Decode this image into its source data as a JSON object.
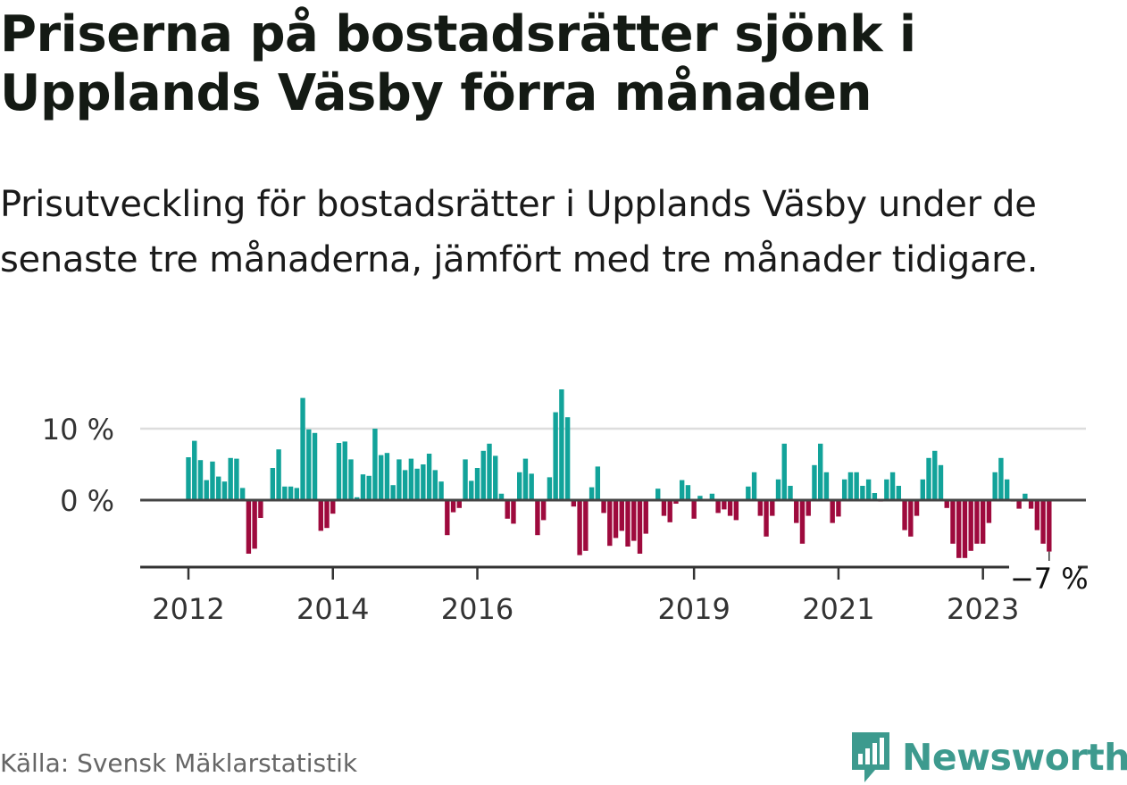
{
  "title": "Priserna på bostadsrätter sjönk i Upplands Väsby förra månaden",
  "subtitle": "Prisutveckling för bostadsrätter i Upplands Väsby under de senaste tre månaderna, jämfört med tre månader tidigare.",
  "source": "Källa: Svensk Mäklarstatistik",
  "brand": {
    "name": "Newsworthy",
    "logo_icon": "bar-chart-logo-icon"
  },
  "colors": {
    "positive": "#12a39a",
    "negative": "#9e0a3d",
    "zero_line": "#444444",
    "grid": "#dddddd",
    "brand": "#3d9a8e"
  },
  "chart_data": {
    "type": "bar",
    "title": "",
    "xlabel": "",
    "ylabel": "",
    "ylim": [
      -9,
      15.5
    ],
    "yticks": [
      0,
      10
    ],
    "ytick_labels": [
      "0 %",
      "10 %"
    ],
    "x_start": {
      "year": 2012,
      "month": 1
    },
    "xticks": [
      2012,
      2014,
      2016,
      2019,
      2021,
      2023
    ],
    "grid": true,
    "last_value_label": "−7 %",
    "values": [
      6.0,
      8.3,
      5.6,
      2.8,
      5.4,
      3.3,
      2.6,
      5.9,
      5.8,
      1.7,
      -7.5,
      -6.8,
      -2.5,
      0.0,
      4.5,
      7.1,
      1.9,
      1.9,
      1.7,
      14.3,
      9.9,
      9.4,
      -4.3,
      -3.9,
      -1.9,
      8.0,
      8.2,
      5.7,
      0.4,
      3.6,
      3.4,
      10.0,
      6.3,
      6.6,
      2.1,
      5.7,
      4.2,
      5.8,
      4.4,
      5.0,
      6.5,
      4.2,
      2.6,
      -4.9,
      -1.7,
      -1.1,
      5.7,
      2.7,
      4.5,
      6.9,
      7.9,
      6.2,
      0.9,
      -2.6,
      -3.3,
      3.9,
      5.8,
      3.7,
      -4.9,
      -2.8,
      3.2,
      12.3,
      15.5,
      11.6,
      -0.9,
      -7.7,
      -7.1,
      1.8,
      4.7,
      -1.8,
      -6.4,
      -5.3,
      -4.3,
      -6.5,
      -5.7,
      -7.5,
      -4.7,
      0.0,
      1.6,
      -2.2,
      -3.1,
      -0.5,
      2.8,
      2.1,
      -2.6,
      0.6,
      0.1,
      0.9,
      -1.8,
      -1.3,
      -2.2,
      -2.8,
      0.1,
      1.9,
      3.9,
      -2.2,
      -5.1,
      -2.2,
      2.9,
      7.9,
      2.0,
      -3.2,
      -6.1,
      -2.2,
      4.9,
      7.9,
      3.9,
      -3.2,
      -2.3,
      2.9,
      3.9,
      3.9,
      2.0,
      2.9,
      1.0,
      -0.2,
      2.9,
      3.9,
      2.0,
      -4.2,
      -5.1,
      -2.2,
      2.9,
      5.9,
      6.9,
      4.9,
      -1.1,
      -6.1,
      -8.1,
      -8.1,
      -7.1,
      -6.1,
      -6.1,
      -3.2,
      3.9,
      5.9,
      2.9,
      -0.2,
      -1.2,
      0.9,
      -1.2,
      -4.2,
      -6.1,
      -7.2
    ]
  }
}
